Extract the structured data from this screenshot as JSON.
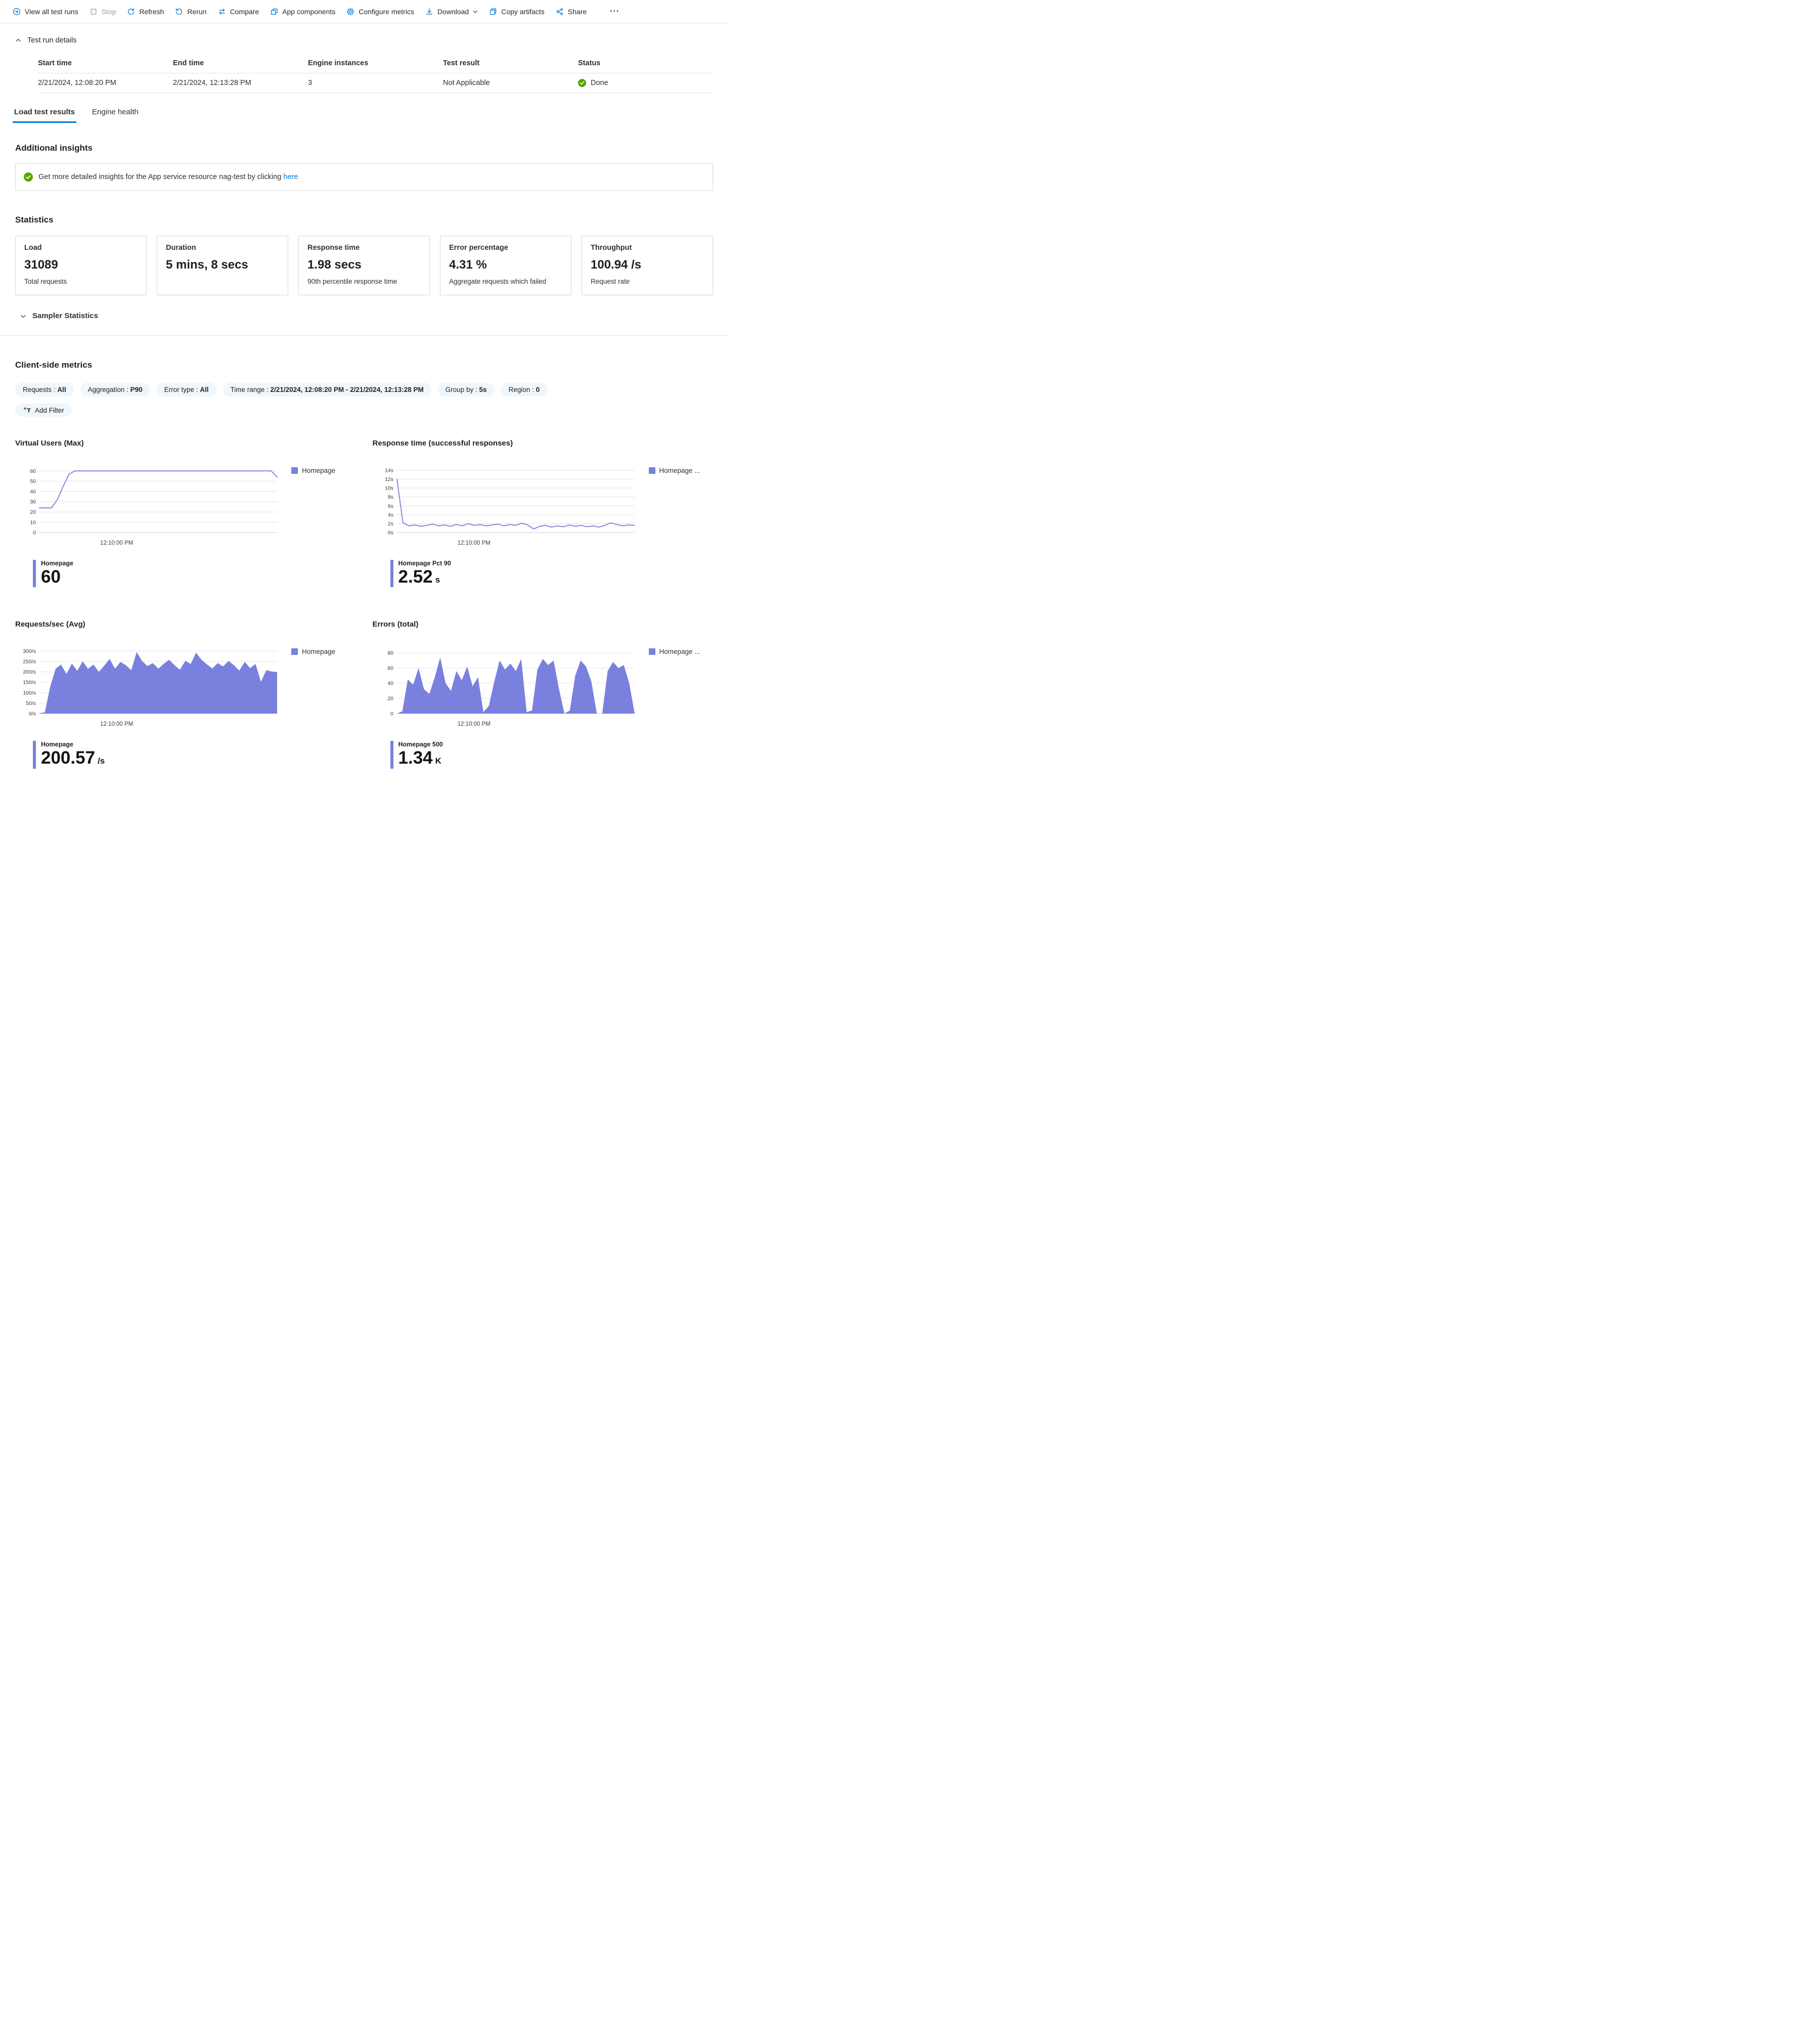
{
  "colors": {
    "accent": "#0078d4",
    "chart": "#7a80dd",
    "success": "#57a300"
  },
  "toolbar": {
    "items": [
      {
        "label": "View all test runs",
        "icon": "arrow-right-circle-icon"
      },
      {
        "label": "Stop",
        "icon": "stop-icon",
        "disabled": true
      },
      {
        "label": "Refresh",
        "icon": "refresh-icon"
      },
      {
        "label": "Rerun",
        "icon": "rerun-icon"
      },
      {
        "label": "Compare",
        "icon": "compare-icon"
      },
      {
        "label": "App components",
        "icon": "app-components-icon"
      },
      {
        "label": "Configure metrics",
        "icon": "gear-icon"
      },
      {
        "label": "Download",
        "icon": "download-icon",
        "has_dropdown": true
      },
      {
        "label": "Copy artifacts",
        "icon": "copy-icon"
      },
      {
        "label": "Share",
        "icon": "share-icon"
      }
    ],
    "more_label": "···"
  },
  "test_run_details": {
    "title": "Test run details",
    "columns": [
      "Start time",
      "End time",
      "Engine instances",
      "Test result",
      "Status"
    ],
    "row": {
      "start_time": "2/21/2024, 12:08:20 PM",
      "end_time": "2/21/2024, 12:13:28 PM",
      "engine_instances": "3",
      "test_result": "Not Applicable",
      "status": "Done"
    }
  },
  "tabs": [
    {
      "label": "Load test results",
      "active": true
    },
    {
      "label": "Engine health",
      "active": false
    }
  ],
  "additional_insights": {
    "title": "Additional insights",
    "message": "Get more detailed insights for the App service resource nag-test by clicking",
    "link_text": "here"
  },
  "statistics": {
    "title": "Statistics",
    "cards": [
      {
        "title": "Load",
        "value": "31089",
        "caption": "Total requests"
      },
      {
        "title": "Duration",
        "value": "5 mins, 8 secs",
        "caption": ""
      },
      {
        "title": "Response time",
        "value": "1.98 secs",
        "caption": "90th percentile response time"
      },
      {
        "title": "Error percentage",
        "value": "4.31 %",
        "caption": "Aggregate requests which failed"
      },
      {
        "title": "Throughput",
        "value": "100.94 /s",
        "caption": "Request rate"
      }
    ],
    "sampler_label": "Sampler Statistics"
  },
  "client_metrics": {
    "title": "Client-side metrics",
    "filters": [
      {
        "label": "Requests :",
        "value": "All"
      },
      {
        "label": "Aggregation :",
        "value": "P90"
      },
      {
        "label": "Error type :",
        "value": "All"
      },
      {
        "label": "Time range :",
        "value": "2/21/2024, 12:08:20 PM - 2/21/2024, 12:13:28 PM"
      },
      {
        "label": "Group by :",
        "value": "5s"
      },
      {
        "label": "Region :",
        "value": "0"
      }
    ],
    "add_filter_label": "Add Filter"
  },
  "chart_data": [
    {
      "type": "line",
      "title": "Virtual Users (Max)",
      "legend": "Homepage",
      "x_tick_label": "12:10:00 PM",
      "x_tick_fraction": 0.325,
      "y_ticks": [
        0,
        10,
        20,
        30,
        40,
        50,
        60
      ],
      "y_tick_labels": [
        "0",
        "10",
        "20",
        "30",
        "40",
        "50",
        "60"
      ],
      "ylim": [
        0,
        65
      ],
      "values": [
        24,
        24,
        24,
        32,
        45,
        57,
        60,
        60,
        60,
        60,
        60,
        60,
        60,
        60,
        60,
        60,
        60,
        60,
        60,
        60,
        60,
        60,
        60,
        60,
        60,
        60,
        60,
        60,
        60,
        60,
        60,
        60,
        60,
        60,
        60,
        60,
        60,
        60,
        60,
        60,
        54
      ],
      "stat": {
        "label": "Homepage",
        "value": "60",
        "unit": ""
      }
    },
    {
      "type": "line",
      "title": "Response time (successful responses)",
      "legend": "Homepage ...",
      "x_tick_label": "12:10:00 PM",
      "x_tick_fraction": 0.325,
      "y_ticks": [
        0,
        2,
        4,
        6,
        8,
        10,
        12,
        14
      ],
      "y_tick_labels": [
        "0s",
        "2s",
        "4s",
        "6s",
        "8s",
        "10s",
        "12s",
        "14s"
      ],
      "ylim": [
        0,
        15
      ],
      "values": [
        12,
        2.2,
        1.5,
        1.7,
        1.4,
        1.6,
        1.9,
        1.5,
        1.7,
        1.4,
        1.8,
        1.5,
        2.0,
        1.6,
        1.8,
        1.5,
        1.7,
        1.9,
        1.5,
        1.8,
        1.6,
        2.1,
        1.7,
        0.8,
        1.4,
        1.6,
        1.2,
        1.5,
        1.3,
        1.7,
        1.4,
        1.6,
        1.3,
        1.5,
        1.2,
        1.6,
        2.2,
        1.8,
        1.5,
        1.7,
        1.6
      ],
      "stat": {
        "label": "Homepage Pct 90",
        "value": "2.52",
        "unit": "s"
      }
    },
    {
      "type": "area",
      "title": "Requests/sec (Avg)",
      "legend": "Homepage",
      "x_tick_label": "12:10:00 PM",
      "x_tick_fraction": 0.325,
      "y_ticks": [
        0,
        50,
        100,
        150,
        200,
        250,
        300
      ],
      "y_tick_labels": [
        "0/s",
        "50/s",
        "100/s",
        "150/s",
        "200/s",
        "250/s",
        "300/s"
      ],
      "ylim": [
        0,
        320
      ],
      "values": [
        2,
        6,
        130,
        215,
        235,
        190,
        240,
        205,
        250,
        215,
        235,
        200,
        230,
        262,
        215,
        248,
        232,
        208,
        295,
        252,
        228,
        242,
        215,
        238,
        258,
        232,
        210,
        252,
        238,
        292,
        258,
        236,
        216,
        242,
        226,
        252,
        232,
        206,
        248,
        218,
        238,
        152,
        208,
        202,
        198
      ],
      "stat": {
        "label": "Homepage",
        "value": "200.57",
        "unit": "/s"
      }
    },
    {
      "type": "area",
      "title": "Errors (total)",
      "legend": "Homepage ...",
      "x_tick_label": "12:10:00 PM",
      "x_tick_fraction": 0.325,
      "y_ticks": [
        0,
        20,
        40,
        60,
        80
      ],
      "y_tick_labels": [
        "0",
        "20",
        "40",
        "60",
        "80"
      ],
      "ylim": [
        0,
        88
      ],
      "values": [
        0,
        3,
        45,
        38,
        60,
        32,
        26,
        48,
        74,
        40,
        30,
        56,
        44,
        62,
        36,
        48,
        2,
        10,
        42,
        70,
        58,
        66,
        56,
        72,
        2,
        4,
        58,
        72,
        64,
        70,
        32,
        0,
        4,
        50,
        70,
        62,
        42,
        0,
        0,
        56,
        68,
        60,
        64,
        40,
        0
      ],
      "stat": {
        "label": "Homepage 500",
        "value": "1.34",
        "unit": "K"
      }
    }
  ]
}
